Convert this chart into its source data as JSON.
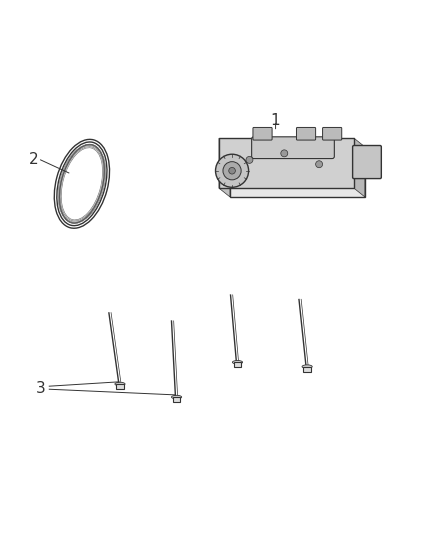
{
  "background_color": "#ffffff",
  "fig_width": 4.38,
  "fig_height": 5.33,
  "dpi": 100,
  "labels": {
    "1": [
      0.63,
      0.76
    ],
    "2": [
      0.07,
      0.68
    ],
    "3": [
      0.09,
      0.25
    ]
  },
  "label_fontsize": 11,
  "line_color": "#333333",
  "part_color": "#888888",
  "belt_color": "#555555"
}
